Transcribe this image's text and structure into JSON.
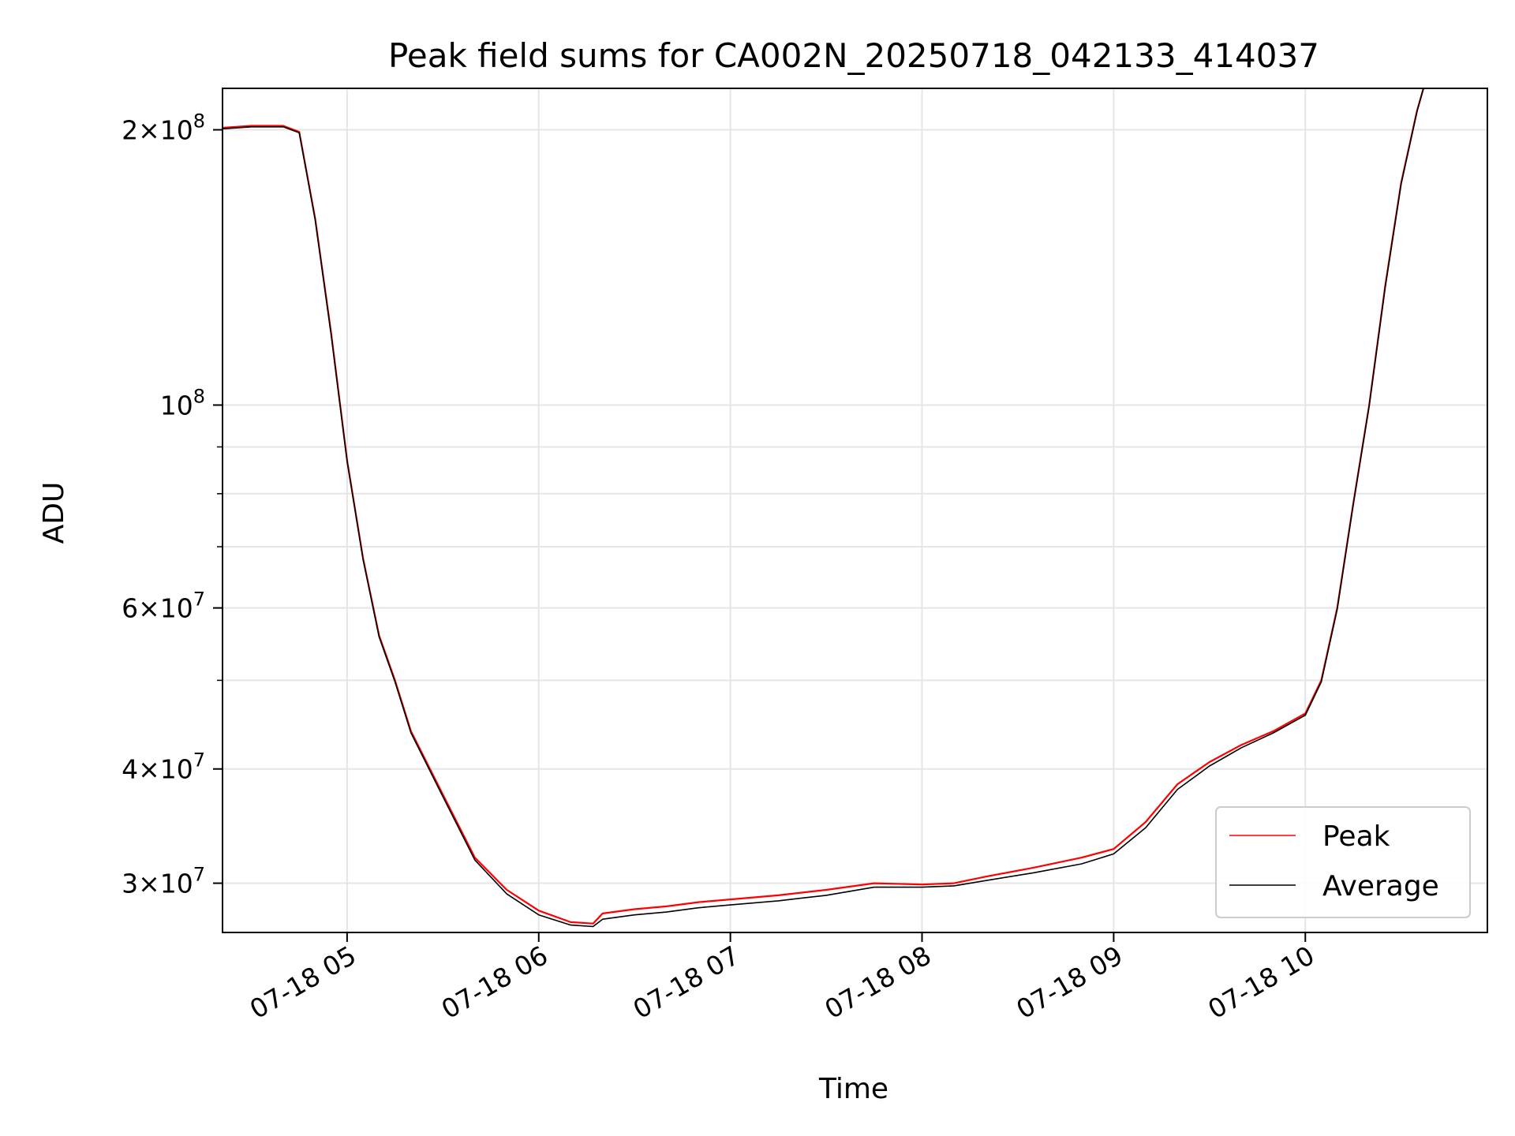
{
  "chart_data": {
    "type": "line",
    "title": "Peak field sums for CA002N_20250718_042133_414037",
    "xlabel": "Time",
    "ylabel": "ADU",
    "y_scale": "log",
    "ylim": [
      26500000,
      222000000
    ],
    "xlim": [
      "07-18 04:21",
      "07-18 10:57"
    ],
    "grid": true,
    "legend_position": "lower-right",
    "x_ticks": [
      {
        "time": "07-18 05:00",
        "label": "07-18 05"
      },
      {
        "time": "07-18 06:00",
        "label": "07-18 06"
      },
      {
        "time": "07-18 07:00",
        "label": "07-18 07"
      },
      {
        "time": "07-18 08:00",
        "label": "07-18 08"
      },
      {
        "time": "07-18 09:00",
        "label": "07-18 09"
      },
      {
        "time": "07-18 10:00",
        "label": "07-18 10"
      }
    ],
    "y_ticks": [
      {
        "value": 200000000,
        "mantissa": "2",
        "exponent": "8"
      },
      {
        "value": 100000000,
        "mantissa": "",
        "exponent": "8"
      },
      {
        "value": 60000000,
        "mantissa": "6",
        "exponent": "7"
      },
      {
        "value": 40000000,
        "mantissa": "4",
        "exponent": "7"
      },
      {
        "value": 30000000,
        "mantissa": "3",
        "exponent": "7"
      }
    ],
    "y_minor_ticks": [
      90000000,
      80000000,
      70000000,
      50000000
    ],
    "series": [
      {
        "name": "Peak",
        "color": "#ff0000",
        "points": [
          [
            "07-18 04:21",
            201000000
          ],
          [
            "07-18 04:30",
            202000000
          ],
          [
            "07-18 04:40",
            202000000
          ],
          [
            "07-18 04:45",
            199000000
          ],
          [
            "07-18 04:50",
            160000000
          ],
          [
            "07-18 04:55",
            120000000
          ],
          [
            "07-18 05:00",
            87000000
          ],
          [
            "07-18 05:05",
            68000000
          ],
          [
            "07-18 05:10",
            56000000
          ],
          [
            "07-18 05:15",
            50000000
          ],
          [
            "07-18 05:20",
            44000000
          ],
          [
            "07-18 05:30",
            37500000
          ],
          [
            "07-18 05:40",
            32000000
          ],
          [
            "07-18 05:50",
            29500000
          ],
          [
            "07-18 06:00",
            28000000
          ],
          [
            "07-18 06:10",
            27200000
          ],
          [
            "07-18 06:17",
            27100000
          ],
          [
            "07-18 06:20",
            27800000
          ],
          [
            "07-18 06:30",
            28100000
          ],
          [
            "07-18 06:40",
            28300000
          ],
          [
            "07-18 06:50",
            28600000
          ],
          [
            "07-18 07:00",
            28800000
          ],
          [
            "07-18 07:15",
            29100000
          ],
          [
            "07-18 07:30",
            29500000
          ],
          [
            "07-18 07:45",
            30000000
          ],
          [
            "07-18 08:00",
            29900000
          ],
          [
            "07-18 08:10",
            30000000
          ],
          [
            "07-18 08:20",
            30500000
          ],
          [
            "07-18 08:35",
            31200000
          ],
          [
            "07-18 08:50",
            32000000
          ],
          [
            "07-18 09:00",
            32700000
          ],
          [
            "07-18 09:10",
            35000000
          ],
          [
            "07-18 09:20",
            38500000
          ],
          [
            "07-18 09:30",
            40700000
          ],
          [
            "07-18 09:40",
            42500000
          ],
          [
            "07-18 09:50",
            44000000
          ],
          [
            "07-18 10:00",
            46000000
          ],
          [
            "07-18 10:05",
            50000000
          ],
          [
            "07-18 10:10",
            60000000
          ],
          [
            "07-18 10:15",
            78000000
          ],
          [
            "07-18 10:20",
            100000000
          ],
          [
            "07-18 10:25",
            135000000
          ],
          [
            "07-18 10:30",
            175000000
          ],
          [
            "07-18 10:35",
            210000000
          ],
          [
            "07-18 10:37",
            222000000
          ]
        ]
      },
      {
        "name": "Average",
        "color": "#000000",
        "points": [
          [
            "07-18 04:21",
            200500000
          ],
          [
            "07-18 04:30",
            201500000
          ],
          [
            "07-18 04:40",
            201500000
          ],
          [
            "07-18 04:45",
            198500000
          ],
          [
            "07-18 04:50",
            159500000
          ],
          [
            "07-18 04:55",
            119500000
          ],
          [
            "07-18 05:00",
            86800000
          ],
          [
            "07-18 05:05",
            67800000
          ],
          [
            "07-18 05:10",
            55800000
          ],
          [
            "07-18 05:15",
            49800000
          ],
          [
            "07-18 05:20",
            43800000
          ],
          [
            "07-18 05:30",
            37300000
          ],
          [
            "07-18 05:40",
            31800000
          ],
          [
            "07-18 05:50",
            29200000
          ],
          [
            "07-18 06:00",
            27700000
          ],
          [
            "07-18 06:10",
            27000000
          ],
          [
            "07-18 06:17",
            26900000
          ],
          [
            "07-18 06:20",
            27400000
          ],
          [
            "07-18 06:30",
            27700000
          ],
          [
            "07-18 06:40",
            27900000
          ],
          [
            "07-18 06:50",
            28200000
          ],
          [
            "07-18 07:00",
            28400000
          ],
          [
            "07-18 07:15",
            28700000
          ],
          [
            "07-18 07:30",
            29100000
          ],
          [
            "07-18 07:45",
            29700000
          ],
          [
            "07-18 08:00",
            29700000
          ],
          [
            "07-18 08:10",
            29800000
          ],
          [
            "07-18 08:20",
            30200000
          ],
          [
            "07-18 08:35",
            30800000
          ],
          [
            "07-18 08:50",
            31500000
          ],
          [
            "07-18 09:00",
            32300000
          ],
          [
            "07-18 09:10",
            34500000
          ],
          [
            "07-18 09:20",
            38000000
          ],
          [
            "07-18 09:30",
            40300000
          ],
          [
            "07-18 09:40",
            42200000
          ],
          [
            "07-18 09:50",
            43800000
          ],
          [
            "07-18 10:00",
            45800000
          ],
          [
            "07-18 10:05",
            49800000
          ],
          [
            "07-18 10:10",
            59800000
          ],
          [
            "07-18 10:15",
            77800000
          ],
          [
            "07-18 10:20",
            99800000
          ],
          [
            "07-18 10:25",
            134500000
          ],
          [
            "07-18 10:30",
            174500000
          ],
          [
            "07-18 10:35",
            209500000
          ],
          [
            "07-18 10:37",
            222000000
          ]
        ]
      }
    ]
  }
}
